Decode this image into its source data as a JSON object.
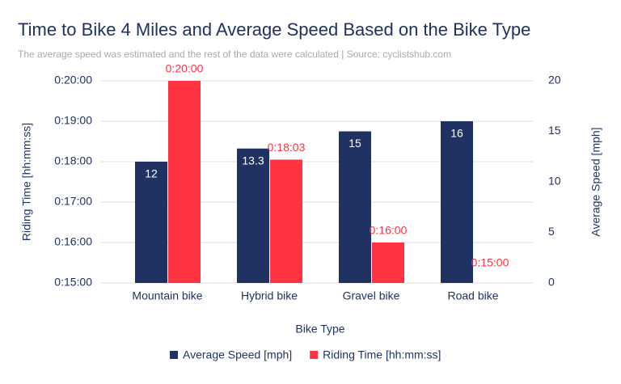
{
  "chart_data": {
    "type": "bar",
    "title": "Time to Bike 4 Miles and Average Speed Based on the Bike Type",
    "subtitle": "The average speed was estimated and the rest of the data were calculated | Source: cyclistshub.com",
    "x_label": "Bike Type",
    "y_label": "Riding Time [hh:mm:ss]",
    "y2_label": "Average Speed [mph]",
    "categories": [
      "Mountain bike",
      "Hybrid bike",
      "Gravel bike",
      "Road bike"
    ],
    "series": [
      {
        "name": "Average Speed [mph]",
        "color": "#1f3261",
        "axis": "y2",
        "values": [
          12,
          13.3,
          15,
          16
        ]
      },
      {
        "name": "Riding Time [hh:mm:ss]",
        "color": "#ff3341",
        "values": [
          20,
          18.05,
          16,
          15
        ],
        "value_labels": [
          "0:20:00",
          "0:18:03",
          "0:16:00",
          "0:15:00"
        ]
      }
    ],
    "ylim": [
      15,
      20
    ],
    "yticks": [
      {
        "value": 15,
        "label": "0:15:00"
      },
      {
        "value": 16,
        "label": "0:16:00"
      },
      {
        "value": 17,
        "label": "0:17:00"
      },
      {
        "value": 18,
        "label": "0:18:00"
      },
      {
        "value": 19,
        "label": "0:19:00"
      },
      {
        "value": 20,
        "label": "0:20:00"
      }
    ],
    "y2lim": [
      0,
      20
    ],
    "y2ticks": [
      0,
      5,
      10,
      15,
      20
    ],
    "grid": true
  }
}
